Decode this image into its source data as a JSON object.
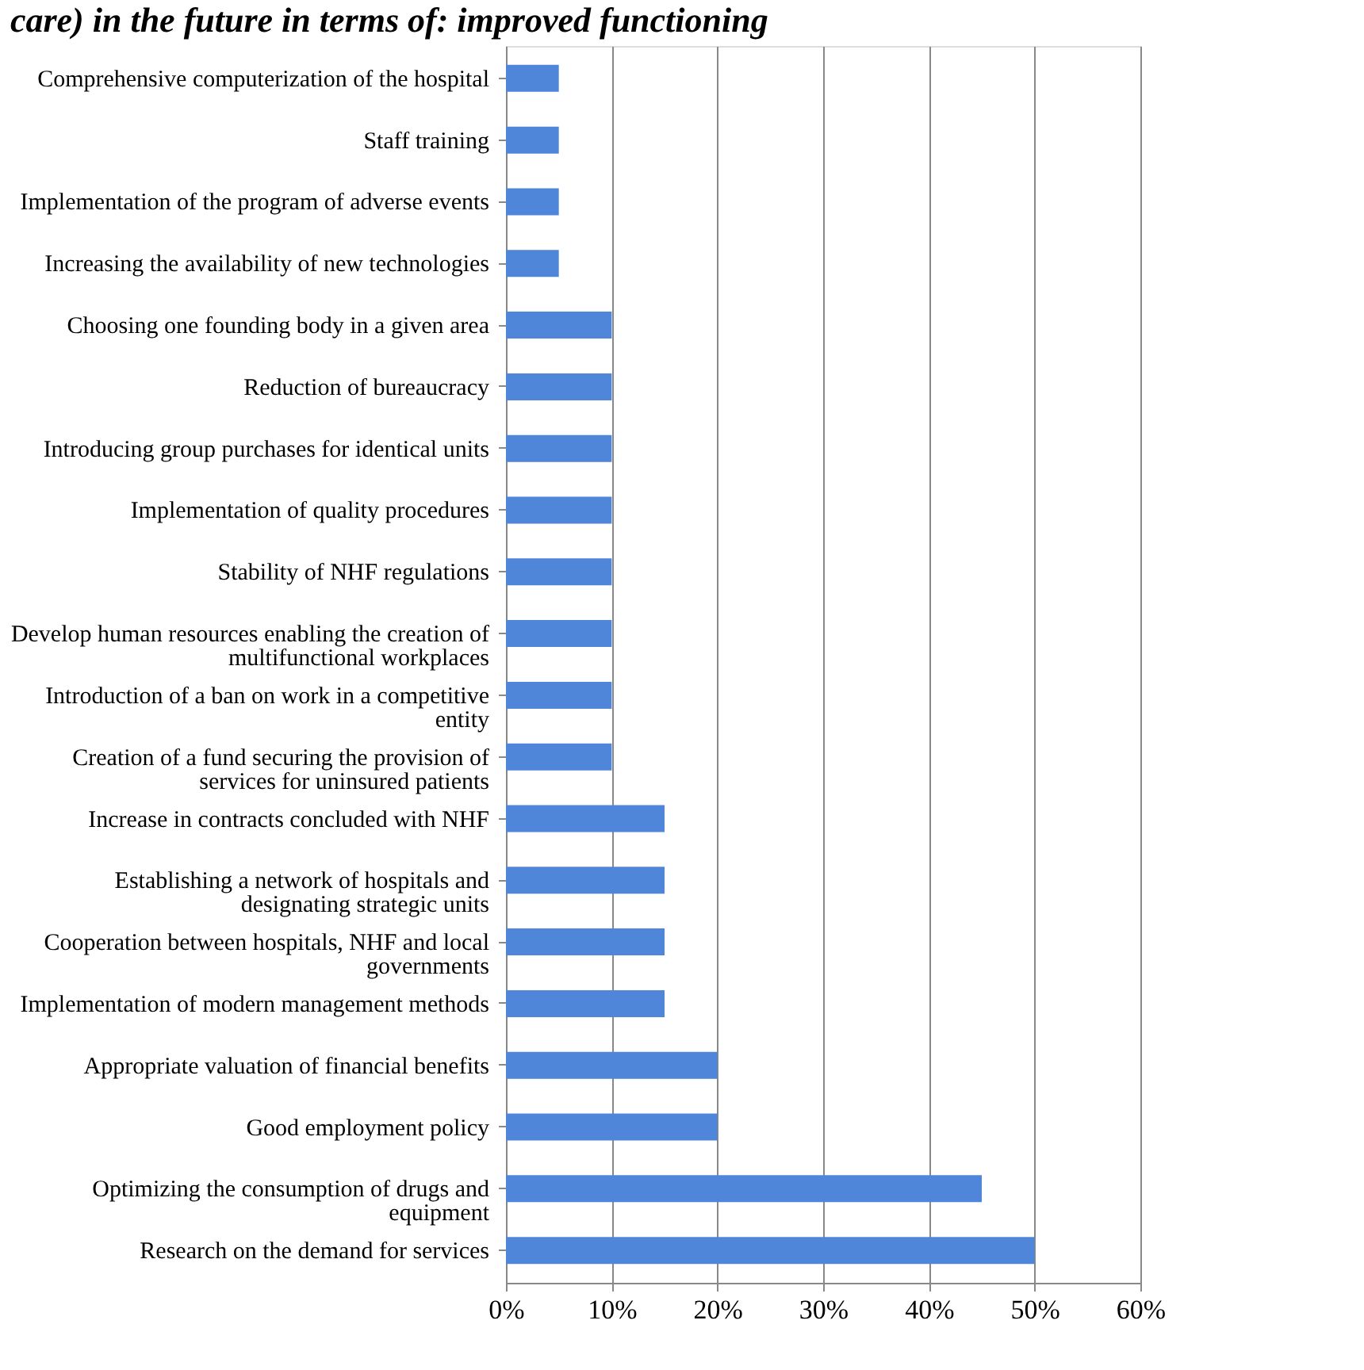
{
  "chart_data": {
    "type": "bar",
    "orientation": "horizontal",
    "title": "care) in the future in terms of: improved functioning",
    "categories": [
      "Comprehensive computerization of the hospital",
      "Staff training",
      "Implementation of the program of adverse events",
      "Increasing the availability of new technologies",
      "Choosing one founding body in a given area",
      "Reduction of bureaucracy",
      "Introducing group purchases for identical units",
      "Implementation of quality procedures",
      "Stability of NHF regulations",
      "Develop human resources enabling the creation of multifunctional workplaces",
      "Introduction of a ban on work in a competitive entity",
      "Creation of a fund securing the provision of services for uninsured patients",
      "Increase in contracts concluded with NHF",
      "Establishing a network of hospitals and designating strategic units",
      "Cooperation between hospitals, NHF and local governments",
      "Implementation of modern management methods",
      "Appropriate valuation of financial benefits",
      "Good employment policy",
      "Optimizing the consumption of drugs and equipment",
      "Research on the demand for services"
    ],
    "values": [
      5,
      5,
      5,
      5,
      10,
      10,
      10,
      10,
      10,
      10,
      10,
      10,
      15,
      15,
      15,
      15,
      20,
      20,
      45,
      50
    ],
    "color": "#4f86d9",
    "xlim": [
      0,
      60
    ],
    "xticks": [
      {
        "value": 0,
        "label": "0%"
      },
      {
        "value": 10,
        "label": "10%"
      },
      {
        "value": 20,
        "label": "20%"
      },
      {
        "value": 30,
        "label": "30%"
      },
      {
        "value": 40,
        "label": "40%"
      },
      {
        "value": 50,
        "label": "50%"
      },
      {
        "value": 60,
        "label": "60%"
      }
    ],
    "grid": "x"
  }
}
